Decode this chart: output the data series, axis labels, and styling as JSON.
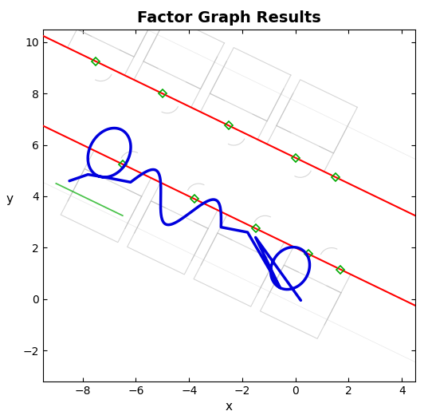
{
  "title": "Factor Graph Results",
  "xlabel": "x",
  "ylabel": "y",
  "xlim": [
    -9.5,
    4.5
  ],
  "ylim": [
    -3.2,
    10.5
  ],
  "xticks": [
    -8,
    -6,
    -4,
    -2,
    0,
    2,
    4
  ],
  "yticks": [
    -2,
    0,
    2,
    4,
    6,
    8,
    10
  ],
  "background_color": "#ffffff",
  "title_fontsize": 14,
  "title_fontweight": "bold",
  "red_line1_intercept": 5.5,
  "red_line2_intercept": 2.0,
  "slope": -0.5,
  "blue_color": "#0000dd",
  "red_color": "#ff0000",
  "green_color": "#00aa00",
  "map_line_color": "#bbbbbb",
  "map_lw": 0.8,
  "map_alpha": 0.6
}
